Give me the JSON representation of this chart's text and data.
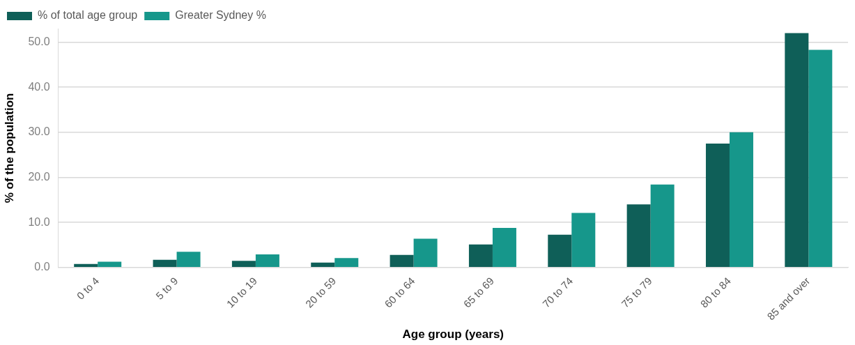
{
  "chart_data": {
    "type": "bar",
    "xlabel": "Age group (years)",
    "ylabel": "% of the population",
    "categories": [
      "0 to 4",
      "5 to 9",
      "10 to 19",
      "20 to 59",
      "60 to 64",
      "65 to 69",
      "70 to 74",
      "75 to 79",
      "80 to 84",
      "85 and over"
    ],
    "series": [
      {
        "name": "% of total age group",
        "color": "#0f5f58",
        "values": [
          0.8,
          1.7,
          1.5,
          1.1,
          2.8,
          5.1,
          7.3,
          14.0,
          27.5,
          52.0
        ]
      },
      {
        "name": "Greater Sydney %",
        "color": "#16978b",
        "values": [
          1.3,
          3.5,
          2.9,
          2.1,
          6.4,
          8.8,
          12.1,
          18.4,
          30.0,
          48.3
        ]
      }
    ],
    "ylim": [
      0,
      53
    ],
    "yticks": [
      {
        "value": 0,
        "label": "0.0"
      },
      {
        "value": 10,
        "label": "10.0"
      },
      {
        "value": 20,
        "label": "20.0"
      },
      {
        "value": 30,
        "label": "30.0"
      },
      {
        "value": 40,
        "label": "40.0"
      },
      {
        "value": 50,
        "label": "50.0"
      }
    ],
    "grid": "y",
    "legend": "top left"
  }
}
